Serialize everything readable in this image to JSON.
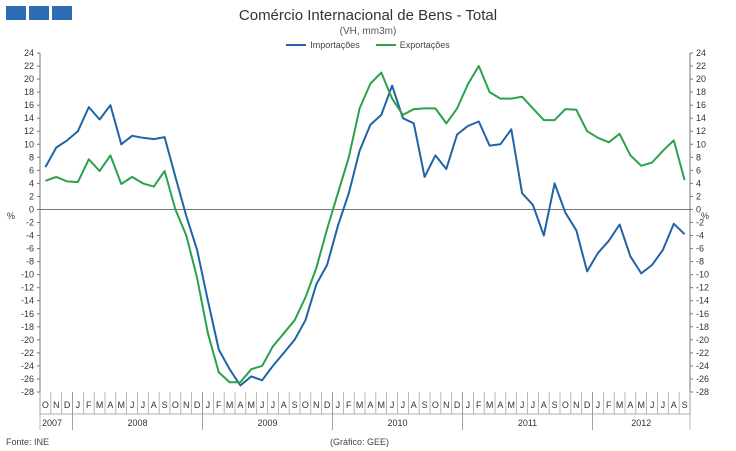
{
  "header": {
    "logo_color": "#2b6cb3"
  },
  "footer": {
    "source": "Fonte: INE",
    "credit": "(Gráfico: GEE)"
  },
  "chart_data": {
    "type": "line",
    "title": "Comércio Internacional de Bens - Total",
    "subtitle": "(VH, mm3m)",
    "ylabel_left": "%",
    "ylabel_right": "%",
    "ylim": [
      -28,
      24
    ],
    "yticks": [
      -28,
      -26,
      -24,
      -22,
      -20,
      -18,
      -16,
      -14,
      -12,
      -10,
      -8,
      -6,
      -4,
      -2,
      0,
      2,
      4,
      6,
      8,
      10,
      12,
      14,
      16,
      18,
      20,
      22,
      24
    ],
    "legend_position": "top-center",
    "grid": false,
    "x": [
      "O",
      "N",
      "D",
      "J",
      "F",
      "M",
      "A",
      "M",
      "J",
      "J",
      "A",
      "S",
      "O",
      "N",
      "D",
      "J",
      "F",
      "M",
      "A",
      "M",
      "J",
      "J",
      "A",
      "S",
      "O",
      "N",
      "D",
      "J",
      "F",
      "M",
      "A",
      "M",
      "J",
      "J",
      "A",
      "S",
      "O",
      "N",
      "D",
      "J",
      "F",
      "M",
      "A",
      "M",
      "J",
      "J",
      "A",
      "S",
      "O",
      "N",
      "D",
      "J",
      "F",
      "M",
      "A",
      "M",
      "J",
      "J",
      "A",
      "S"
    ],
    "year_labels": [
      {
        "label": "2007",
        "start": 0,
        "end": 2
      },
      {
        "label": "2008",
        "start": 3,
        "end": 14
      },
      {
        "label": "2009",
        "start": 15,
        "end": 26
      },
      {
        "label": "2010",
        "start": 27,
        "end": 38
      },
      {
        "label": "2011",
        "start": 39,
        "end": 50
      },
      {
        "label": "2012",
        "start": 51,
        "end": 59
      }
    ],
    "series": [
      {
        "name": "Importações",
        "color": "#1f64a6",
        "values": [
          6.5,
          9.5,
          10.6,
          12.0,
          15.7,
          13.8,
          16.0,
          10.0,
          11.3,
          11.0,
          10.8,
          11.1,
          5.0,
          -1.0,
          -6.2,
          -14.0,
          -21.5,
          -24.5,
          -27.0,
          -25.6,
          -26.2,
          -24.0,
          -22.0,
          -20.0,
          -17.0,
          -11.5,
          -8.5,
          -2.5,
          2.5,
          9.0,
          13.0,
          14.5,
          19.0,
          14.0,
          13.2,
          5.0,
          8.3,
          6.2,
          11.5,
          12.8,
          13.5,
          9.8,
          10.0,
          12.3,
          2.5,
          0.7,
          -4.0,
          4.0,
          -0.5,
          -3.2,
          -9.5,
          -6.7,
          -4.8,
          -2.3,
          -7.2,
          -9.8,
          -8.5,
          -6.2,
          -2.2,
          -3.8
        ]
      },
      {
        "name": "Exportações",
        "color": "#2aa24b",
        "values": [
          4.4,
          5.0,
          4.3,
          4.2,
          7.7,
          5.9,
          8.3,
          3.9,
          5.0,
          4.0,
          3.5,
          5.9,
          0.0,
          -4.0,
          -10.5,
          -19.0,
          -25.0,
          -26.5,
          -26.5,
          -24.5,
          -24.0,
          -21.0,
          -19.0,
          -17.0,
          -13.5,
          -9.0,
          -3.0,
          2.5,
          8.0,
          15.5,
          19.3,
          21.0,
          17.0,
          14.5,
          15.4,
          15.5,
          15.5,
          13.2,
          15.5,
          19.2,
          22.0,
          18.0,
          17.0,
          17.0,
          17.3,
          15.5,
          13.7,
          13.7,
          15.4,
          15.3,
          12.0,
          11.0,
          10.3,
          11.6,
          8.3,
          6.7,
          7.2,
          9.0,
          10.6,
          4.5
        ]
      }
    ]
  }
}
